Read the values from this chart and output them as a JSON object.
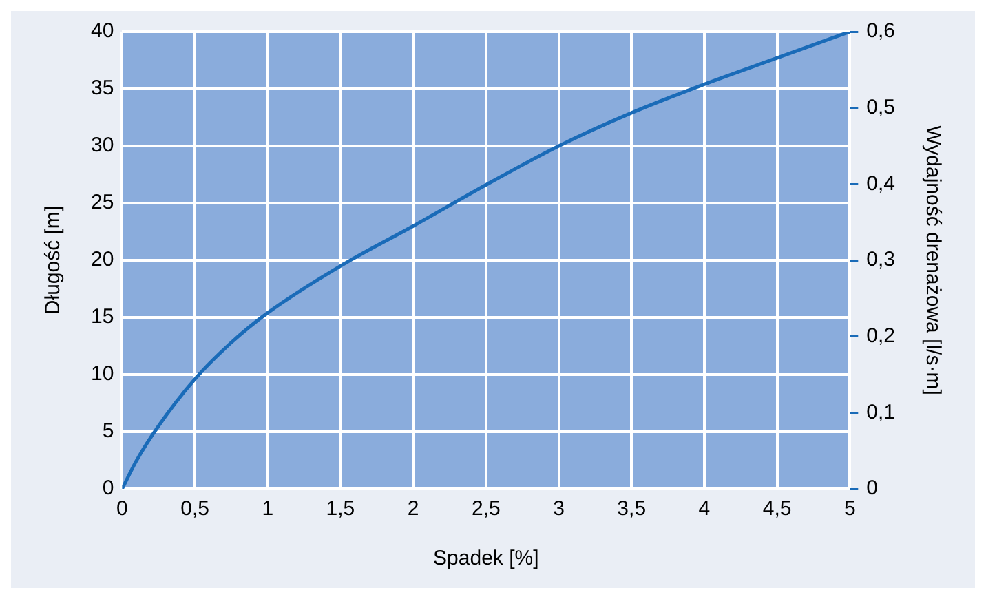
{
  "chart_data": {
    "type": "line",
    "xlabel": "Spadek [%]",
    "ylabel": "Długość [m]",
    "y2label": "Wydajność drenażowa [l/s·m]",
    "x": [
      0,
      0.1,
      0.25,
      0.5,
      0.75,
      1,
      1.5,
      2,
      2.5,
      3,
      3.5,
      4,
      4.5,
      5
    ],
    "series": [
      {
        "color": "#1a6bb8",
        "values": [
          0,
          2.5,
          5.5,
          9.6,
          12.8,
          15.4,
          19.5,
          23,
          26.6,
          30,
          32.9,
          35.4,
          37.7,
          40
        ]
      }
    ],
    "xlim": [
      0,
      5
    ],
    "xticks": [
      0,
      {
        "value": 0.5,
        "label": "0,5"
      },
      1,
      {
        "value": 1.5,
        "label": "1,5"
      },
      2,
      {
        "value": 2.5,
        "label": "2,5"
      },
      3,
      {
        "value": 3.5,
        "label": "3,5"
      },
      4,
      {
        "value": 4.5,
        "label": "4,5"
      },
      5
    ],
    "ylim": [
      0,
      40
    ],
    "yticks": [
      0,
      5,
      10,
      15,
      20,
      25,
      30,
      35,
      40
    ],
    "y2lim": [
      0,
      0.6
    ],
    "y2ticks": [
      0,
      {
        "value": 0.1,
        "label": "0,1"
      },
      {
        "value": 0.2,
        "label": "0,2"
      },
      {
        "value": 0.3,
        "label": "0,3"
      },
      {
        "value": 0.4,
        "label": "0,4"
      },
      {
        "value": 0.5,
        "label": "0,5"
      },
      {
        "value": 0.6,
        "label": "0,6"
      }
    ],
    "grid": true,
    "legend": false,
    "marker": "none",
    "line_style": "solid"
  }
}
